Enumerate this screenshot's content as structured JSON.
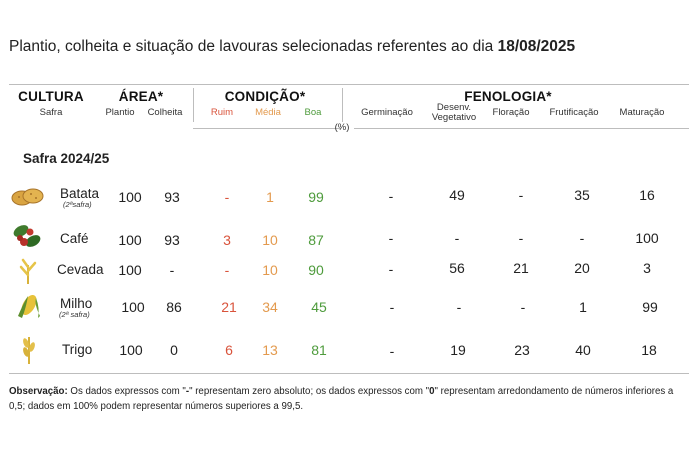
{
  "title": {
    "text": "Plantio, colheita e situação de lavouras selecionadas referentes ao dia",
    "date": "18/08/2025"
  },
  "headers": {
    "cultura": "CULTURA",
    "cultura_sub": "Safra",
    "area": "ÁREA*",
    "area_plantio": "Plantio",
    "area_colheita": "Colheita",
    "condicao": "CONDIÇÃO*",
    "cond_ruim": "Ruim",
    "cond_media": "Média",
    "cond_boa": "Boa",
    "fenologia": "FENOLOGIA*",
    "fen_germinacao": "Germinação",
    "fen_desenv_1": "Desenv.",
    "fen_desenv_2": "Vegetativo",
    "fen_floracao": "Floração",
    "fen_frutificacao": "Frutificação",
    "fen_maturacao": "Maturação",
    "unit": "(%)"
  },
  "colors": {
    "ruim": "#d9533b",
    "media": "#e39a4e",
    "boa": "#4e9b3c"
  },
  "safra_label": "Safra 2024/25",
  "rows": [
    {
      "crop": "Batata",
      "sub": "(2ªsafra)",
      "icon": "potato-icon",
      "plantio": "100",
      "colheita": "93",
      "ruim": "-",
      "media": "1",
      "boa": "99",
      "germinacao": "-",
      "desenv": "49",
      "floracao": "-",
      "frutificacao": "35",
      "maturacao": "16"
    },
    {
      "crop": "Café",
      "sub": "",
      "icon": "coffee-icon",
      "plantio": "100",
      "colheita": "93",
      "ruim": "3",
      "media": "10",
      "boa": "87",
      "germinacao": "-",
      "desenv": "-",
      "floracao": "-",
      "frutificacao": "-",
      "maturacao": "100"
    },
    {
      "crop": "Cevada",
      "sub": "",
      "icon": "barley-icon",
      "plantio": "100",
      "colheita": "-",
      "ruim": "-",
      "media": "10",
      "boa": "90",
      "germinacao": "-",
      "desenv": "56",
      "floracao": "21",
      "frutificacao": "20",
      "maturacao": "3"
    },
    {
      "crop": "Milho",
      "sub": "(2ª safra)",
      "icon": "corn-icon",
      "plantio": "100",
      "colheita": "86",
      "ruim": "21",
      "media": "34",
      "boa": "45",
      "germinacao": "-",
      "desenv": "-",
      "floracao": "-",
      "frutificacao": "1",
      "maturacao": "99"
    },
    {
      "crop": "Trigo",
      "sub": "",
      "icon": "wheat-icon",
      "plantio": "100",
      "colheita": "0",
      "ruim": "6",
      "media": "13",
      "boa": "81",
      "germinacao": "-",
      "desenv": "19",
      "floracao": "23",
      "frutificacao": "40",
      "maturacao": "18"
    }
  ],
  "observation": {
    "label": "Observação:",
    "text_1": "Os dados expressos com \"",
    "dash": "-",
    "text_2": "\" representam zero absoluto; os dados expressos com \"",
    "zero": "0",
    "text_3": "\" representam arredondamento de números inferiores a 0,5; dados em 100% podem representar números superiores a 99,5."
  }
}
